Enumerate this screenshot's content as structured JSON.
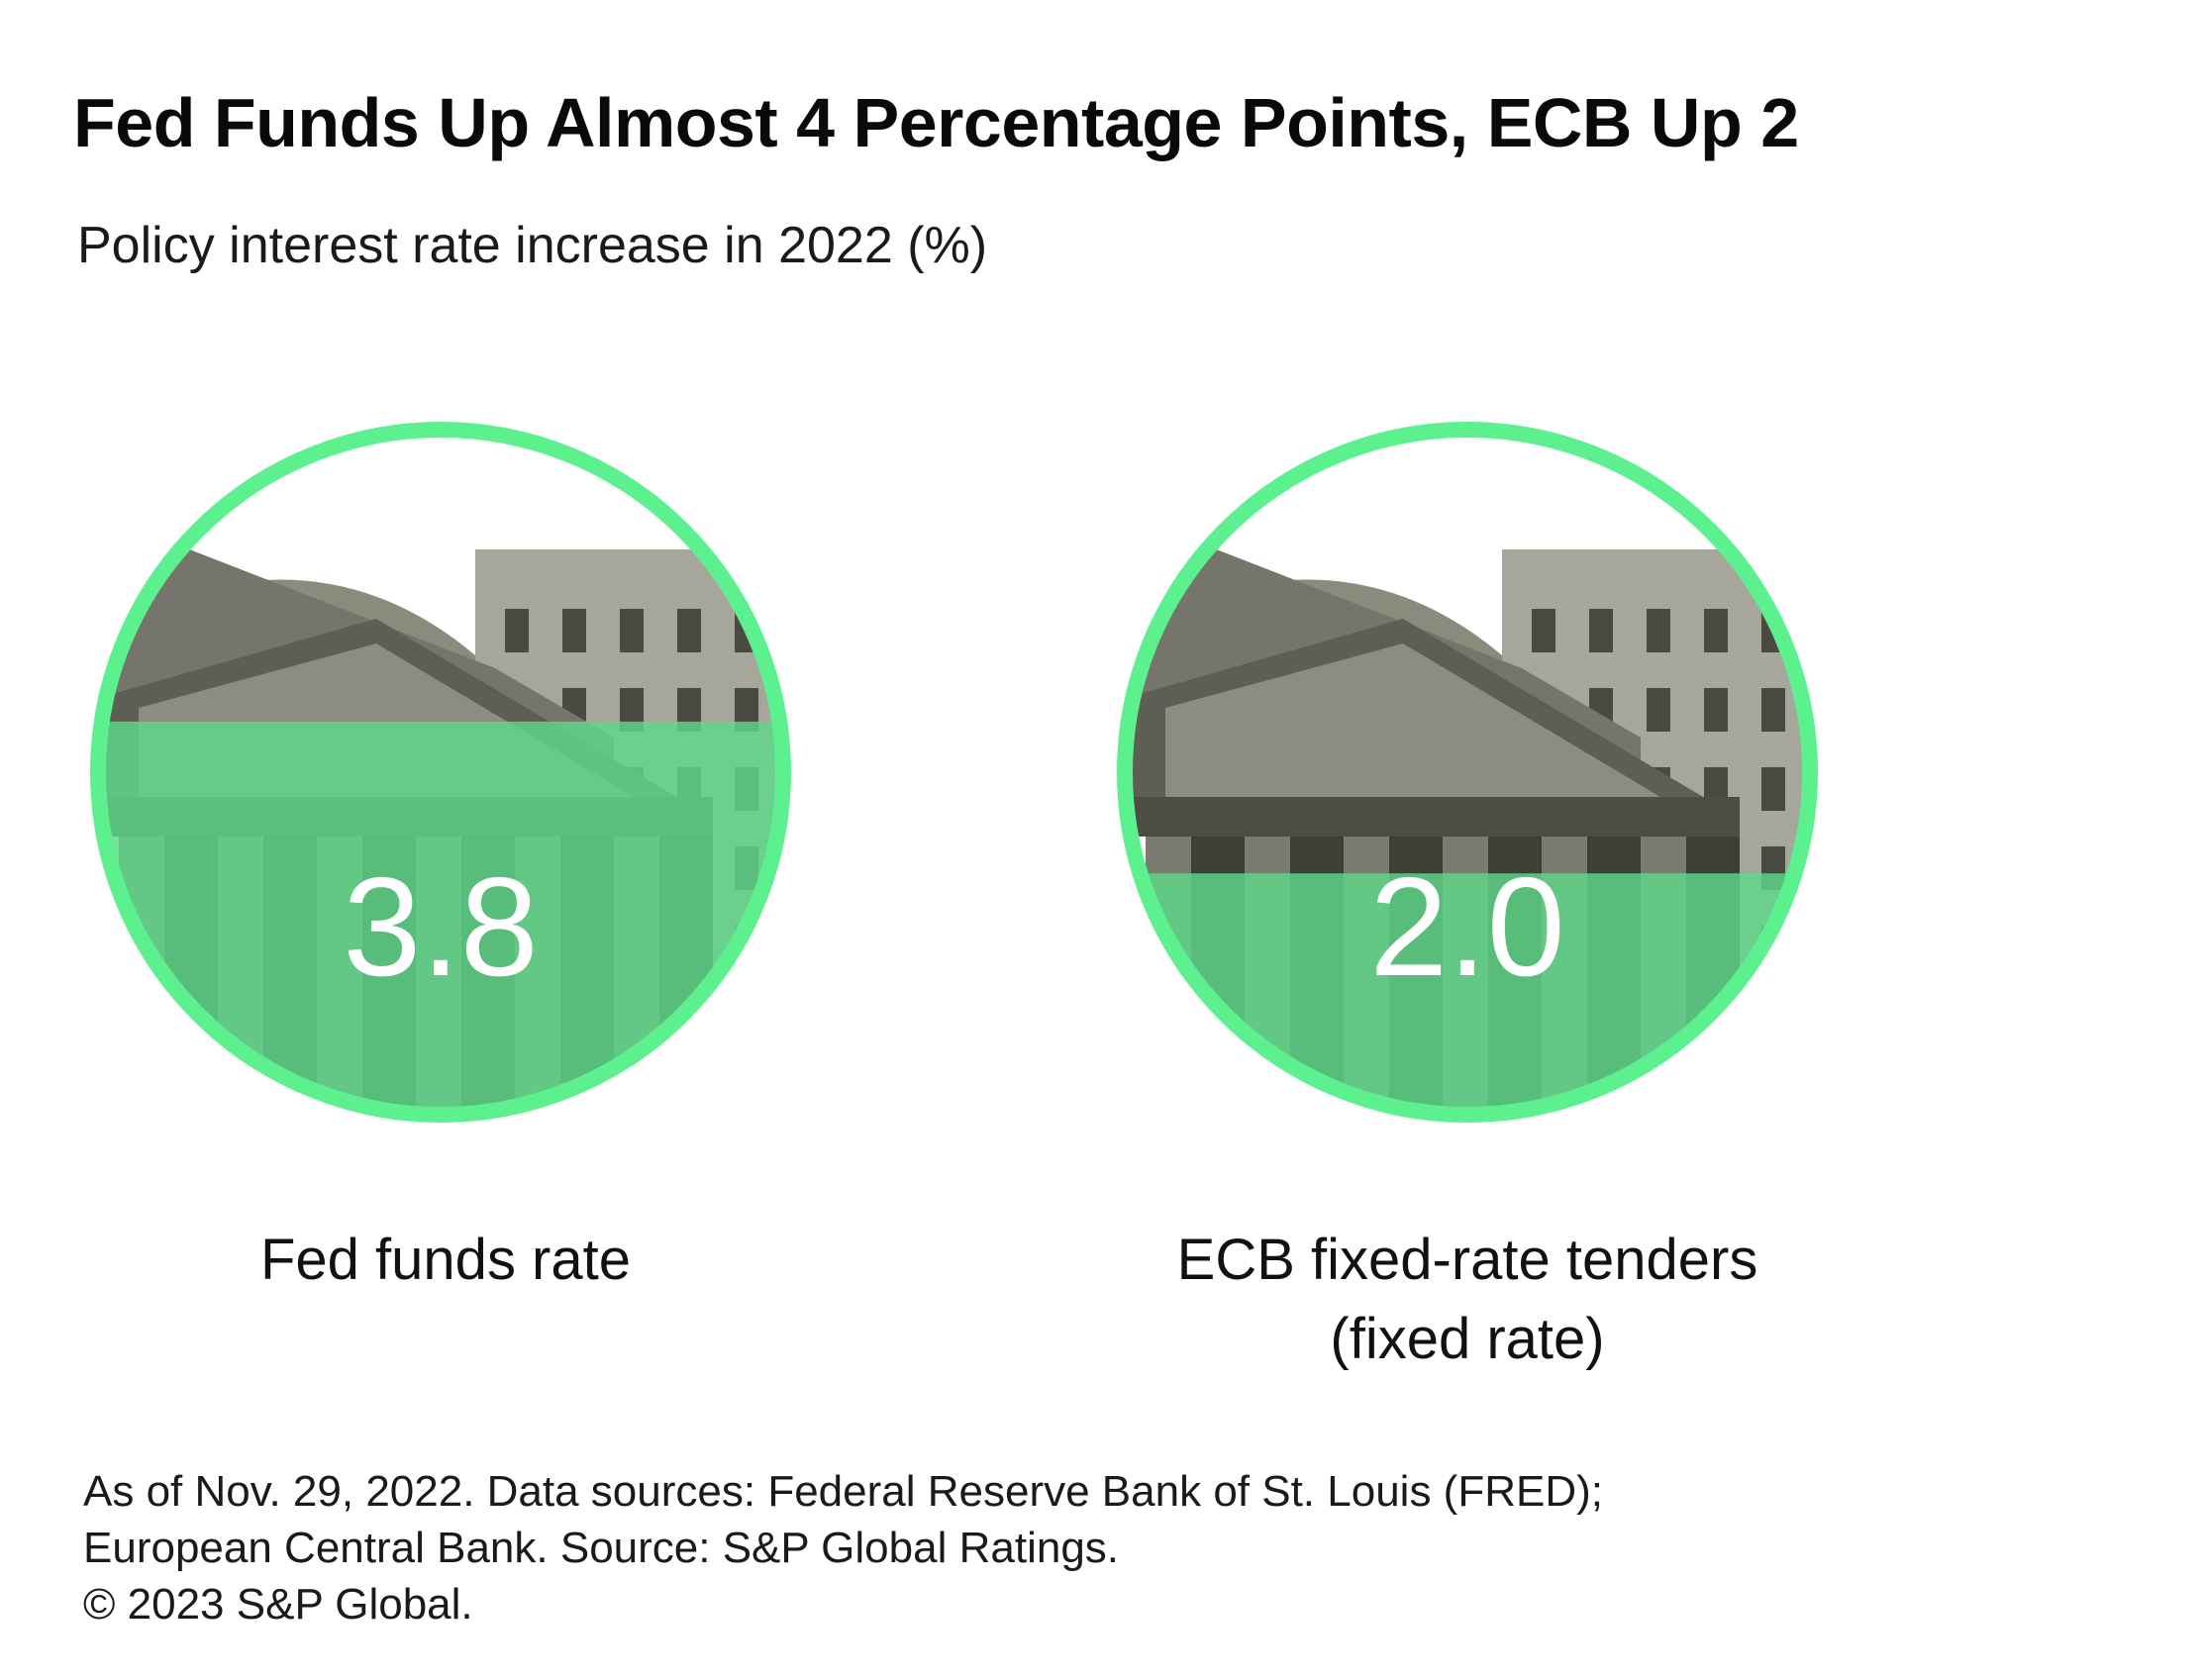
{
  "title": "Fed Funds Up Almost 4 Percentage Points, ECB Up 2",
  "subtitle": "Policy interest rate increase in 2022 (%)",
  "colors": {
    "accent_green": "#5CF08E",
    "fill_green": "#5ED98A",
    "building_stone": "#75756b",
    "value_text": "#ffffff"
  },
  "chart_data": {
    "type": "gauge",
    "title": "Fed Funds Up Almost 4 Percentage Points, ECB Up 2",
    "subtitle": "Policy interest rate increase in 2022 (%)",
    "series": [
      {
        "label_lines": [
          "Fed funds rate"
        ],
        "value": 3.8,
        "value_label": "3.8",
        "fill_fraction": 0.57
      },
      {
        "label_lines": [
          "ECB fixed-rate tenders",
          "(fixed rate)"
        ],
        "value": 2.0,
        "value_label": "2.0",
        "fill_fraction": 0.36
      }
    ]
  },
  "footnote": {
    "lines": [
      "As of Nov. 29, 2022. Data sources: Federal Reserve Bank of St. Louis (FRED);",
      "European Central Bank. Source: S&P Global Ratings.",
      "© 2023 S&P Global."
    ]
  }
}
